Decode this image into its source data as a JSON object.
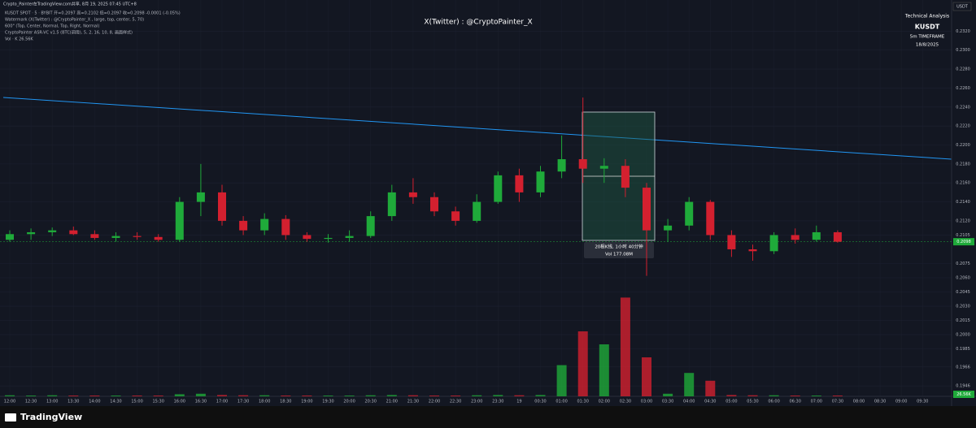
{
  "header": {
    "share_line": "Crypto_Painter在TradingView.com共享, 8月 19, 2025 07:45 UTC+8",
    "legend_lines": [
      "KUSDT SPOT · 5 · BYBIT  开=0.2097 高=0.2102 低=0.2097 收=0.2098 -0.0001 (-0.05%)",
      "Watermark (X(Twitter) : @CryptoPainter_X , large, top, center, 5, 70)",
      "600\" (Top, Center, Normal, Top, Right, Normal)",
      "CryptoPainter ASR-VC v1.5 (BTC(调用), 5, 2, 16, 10, 8, 画面样式)",
      "Vol · K 26.56K"
    ]
  },
  "watermark": "X(Twitter) : @CryptoPainter_X",
  "info_panel": {
    "title": "Technical Analysis",
    "symbol": "KUSDT",
    "timeframe": "5m TIMEFRAME",
    "date": "18/8/2025"
  },
  "currency": "USDT",
  "volume_label": "26.56K",
  "footer": "TradingView",
  "chart_data": {
    "type": "candlestick",
    "categories": [
      "12:00",
      "12:30",
      "13:00",
      "13:30",
      "14:00",
      "14:30",
      "15:00",
      "15:30",
      "16:00",
      "16:30",
      "17:00",
      "17:30",
      "18:00",
      "18:30",
      "19:00",
      "19:30",
      "20:00",
      "20:30",
      "21:00",
      "21:30",
      "22:00",
      "22:30",
      "23:00",
      "23:30",
      "19",
      "00:30",
      "01:00",
      "01:30",
      "02:00",
      "02:30",
      "03:00",
      "03:30",
      "04:00",
      "04:30",
      "05:00",
      "05:30",
      "06:00",
      "06:30",
      "07:00",
      "07:30",
      "08:00",
      "08:30",
      "09:00",
      "09:30"
    ],
    "open": [
      0.21,
      0.2106,
      0.2108,
      0.211,
      0.2106,
      0.2102,
      0.2104,
      0.2103,
      0.21,
      0.214,
      0.215,
      0.212,
      0.211,
      0.2122,
      0.2105,
      0.2101,
      0.2102,
      0.2104,
      0.2125,
      0.215,
      0.2145,
      0.213,
      0.212,
      0.214,
      0.2168,
      0.215,
      0.2172,
      0.2185,
      0.2175,
      0.2178,
      0.2155,
      0.211,
      0.2115,
      0.214,
      0.2105,
      0.209,
      0.2088,
      0.2105,
      0.21,
      0.2108,
      null,
      null,
      null,
      null
    ],
    "high": [
      0.211,
      0.2112,
      0.2113,
      0.2114,
      0.211,
      0.2108,
      0.2108,
      0.2106,
      0.2145,
      0.218,
      0.2158,
      0.2125,
      0.2128,
      0.2126,
      0.2108,
      0.2106,
      0.211,
      0.213,
      0.2158,
      0.2165,
      0.215,
      0.2135,
      0.2148,
      0.2172,
      0.2175,
      0.2178,
      0.221,
      0.225,
      0.2186,
      0.2185,
      0.216,
      0.2122,
      0.2145,
      0.2142,
      0.211,
      0.2095,
      0.2108,
      0.2112,
      0.2115,
      0.211,
      null,
      null,
      null,
      null
    ],
    "low": [
      0.2098,
      0.21,
      0.2104,
      0.2105,
      0.21,
      0.2098,
      0.21,
      0.2098,
      0.2098,
      0.2125,
      0.2115,
      0.2105,
      0.2105,
      0.21,
      0.2098,
      0.2097,
      0.2098,
      0.2102,
      0.212,
      0.2138,
      0.2125,
      0.2115,
      0.2118,
      0.2138,
      0.214,
      0.2145,
      0.2165,
      0.216,
      0.216,
      0.2145,
      0.2062,
      0.2098,
      0.211,
      0.21,
      0.2082,
      0.2078,
      0.2085,
      0.2096,
      0.2098,
      0.2097,
      null,
      null,
      null,
      null
    ],
    "close": [
      0.2106,
      0.2108,
      0.211,
      0.2106,
      0.2102,
      0.2104,
      0.2103,
      0.21,
      0.214,
      0.215,
      0.212,
      0.211,
      0.2122,
      0.2105,
      0.2101,
      0.2102,
      0.2104,
      0.2125,
      0.215,
      0.2145,
      0.213,
      0.212,
      0.214,
      0.2168,
      0.215,
      0.2172,
      0.2185,
      0.2175,
      0.2178,
      0.2155,
      0.211,
      0.2115,
      0.214,
      0.2105,
      0.209,
      0.2088,
      0.2105,
      0.21,
      0.2108,
      0.2098,
      null,
      null,
      null,
      null
    ],
    "volume": [
      0.4,
      0.3,
      0.4,
      0.3,
      0.3,
      0.3,
      0.3,
      0.3,
      0.8,
      1.0,
      0.5,
      0.4,
      0.4,
      0.3,
      0.3,
      0.3,
      0.3,
      0.4,
      0.5,
      0.4,
      0.3,
      0.3,
      0.4,
      0.5,
      0.4,
      0.5,
      12,
      25,
      20,
      38,
      15,
      1,
      9,
      6,
      0.5,
      0.4,
      0.4,
      0.3,
      0.3,
      0.3,
      null,
      null,
      null,
      null
    ],
    "up_color": "#1faa3a",
    "down_color": "#d3202f",
    "ylim": [
      0.1935,
      0.234
    ],
    "yticks": [
      {
        "value": 0.232,
        "label": "0.2320"
      },
      {
        "value": 0.23,
        "label": "0.2300"
      },
      {
        "value": 0.228,
        "label": "0.2280"
      },
      {
        "value": 0.226,
        "label": "0.2260"
      },
      {
        "value": 0.224,
        "label": "0.2240"
      },
      {
        "value": 0.222,
        "label": "0.2220"
      },
      {
        "value": 0.22,
        "label": "0.2200"
      },
      {
        "value": 0.218,
        "label": "0.2180"
      },
      {
        "value": 0.216,
        "label": "0.2160"
      },
      {
        "value": 0.214,
        "label": "0.2140"
      },
      {
        "value": 0.212,
        "label": "0.2120"
      },
      {
        "value": 0.2105,
        "label": "0.2105"
      },
      {
        "value": 0.2075,
        "label": "0.2075"
      },
      {
        "value": 0.206,
        "label": "0.2060"
      },
      {
        "value": 0.2045,
        "label": "0.2045"
      },
      {
        "value": 0.203,
        "label": "0.2030"
      },
      {
        "value": 0.2015,
        "label": "0.2015"
      },
      {
        "value": 0.2,
        "label": "0.2000"
      },
      {
        "value": 0.1985,
        "label": "0.1985"
      },
      {
        "value": 0.1966,
        "label": "0.1966"
      },
      {
        "value": 0.1946,
        "label": "0.1946"
      }
    ],
    "y2lim": [
      0,
      40
    ],
    "last_price": {
      "value": 0.2098,
      "label": "0.2098"
    },
    "annotations": [
      "20根K线, 1小时 40分钟",
      "Vol 177.08M"
    ]
  }
}
